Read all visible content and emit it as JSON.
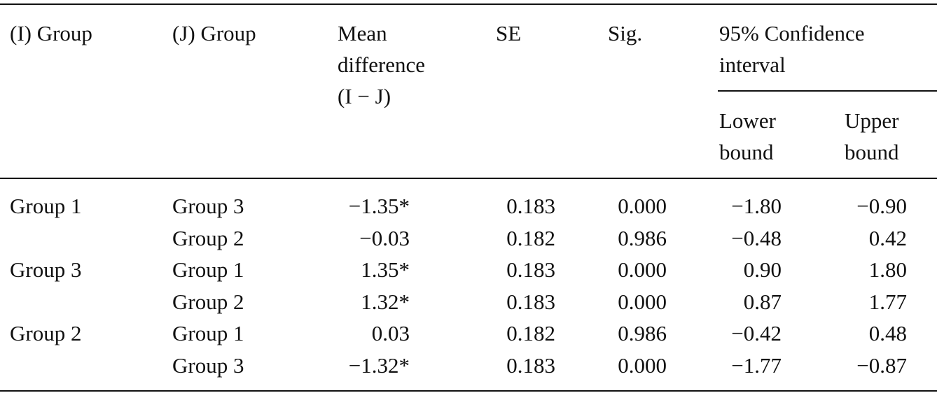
{
  "table": {
    "header": {
      "i_group": "(I) Group",
      "j_group": "(J) Group",
      "mean_difference": [
        "Mean",
        "difference",
        "(I − J)"
      ],
      "se": "SE",
      "sig": "Sig.",
      "ci": [
        "95% Confidence",
        "interval"
      ],
      "lower": [
        "Lower",
        "bound"
      ],
      "upper": [
        "Upper",
        "bound"
      ]
    },
    "rows": [
      [
        "Group 1",
        "Group 3",
        "−1.35*",
        "0.183",
        "0.000",
        "−1.80",
        "−0.90"
      ],
      [
        null,
        "Group 2",
        "−0.03",
        "0.182",
        "0.986",
        "−0.48",
        "0.42"
      ],
      [
        "Group 3",
        "Group 1",
        "1.35*",
        "0.183",
        "0.000",
        "0.90",
        "1.80"
      ],
      [
        null,
        "Group 2",
        "1.32*",
        "0.183",
        "0.000",
        "0.87",
        "1.77"
      ],
      [
        "Group 2",
        "Group 1",
        "0.03",
        "0.182",
        "0.986",
        "−0.42",
        "0.48"
      ],
      [
        null,
        "Group 3",
        "−1.32*",
        "0.183",
        "0.000",
        "−1.77",
        "−0.87"
      ]
    ]
  }
}
